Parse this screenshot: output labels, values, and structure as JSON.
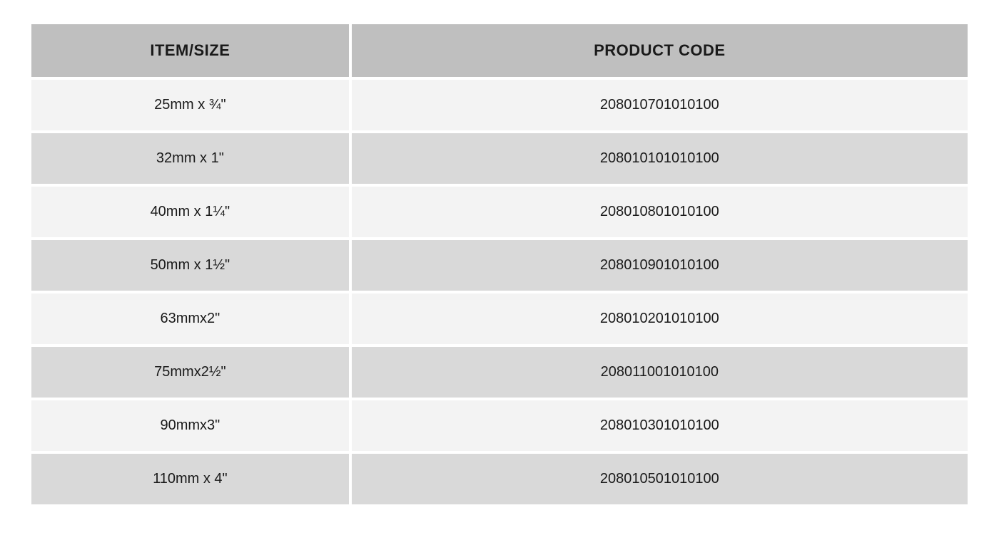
{
  "table": {
    "type": "table",
    "columns": [
      {
        "label": "ITEM/SIZE",
        "width_pct": 34,
        "align": "center"
      },
      {
        "label": "PRODUCT CODE",
        "width_pct": 66,
        "align": "center"
      }
    ],
    "rows": [
      {
        "item": "25mm x ¾\"",
        "code": "208010701010100"
      },
      {
        "item": "32mm x 1\"",
        "code": "208010101010100"
      },
      {
        "item": "40mm x 1¼\"",
        "code": "208010801010100"
      },
      {
        "item": "50mm x 1½\"",
        "code": "208010901010100"
      },
      {
        "item": "63mmx2\"",
        "code": "208010201010100"
      },
      {
        "item": "75mmx2½\"",
        "code": "208011001010100"
      },
      {
        "item": "90mmx3\"",
        "code": "208010301010100"
      },
      {
        "item": "110mm x 4\"",
        "code": "208010501010100"
      }
    ],
    "header_bg_color": "#bfbfbf",
    "row_odd_bg_color": "#f3f3f3",
    "row_even_bg_color": "#d9d9d9",
    "text_color": "#1a1a1a",
    "header_fontsize": 22,
    "cell_fontsize": 20,
    "header_font_weight": 900,
    "background_color": "#ffffff",
    "border_spacing": 4
  }
}
